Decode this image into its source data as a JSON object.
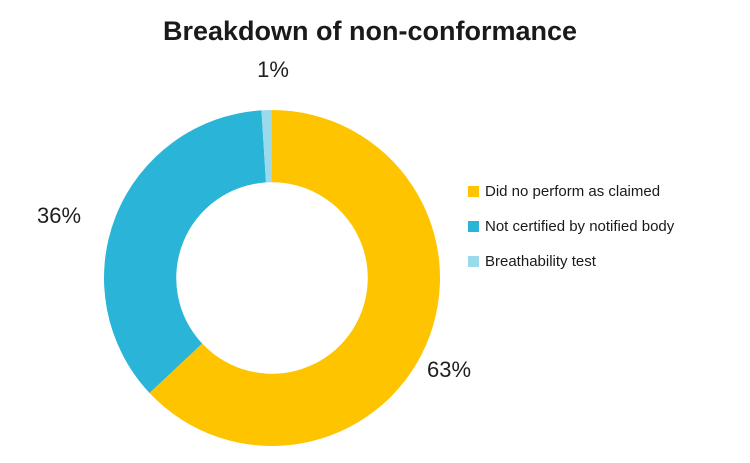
{
  "title": "Breakdown of non-conformance",
  "colors": {
    "slice_yellow": "#FFC400",
    "slice_blue": "#29B4D8",
    "slice_light_blue": "#9BDAEA",
    "text": "#1A1A1A",
    "background": "#FFFFFF"
  },
  "chart_data": {
    "type": "pie",
    "subtype": "donut",
    "title": "Breakdown of non-conformance",
    "categories": [
      "Did no perform as claimed",
      "Not certified by notified body",
      "Breathability test"
    ],
    "values": [
      63,
      36,
      1
    ],
    "unit": "%",
    "start_angle_deg": 0,
    "direction": "clockwise",
    "donut_hole_ratio": 0.57,
    "legend_position": "right",
    "data_labels_position": "outside-end",
    "slices": [
      {
        "label": "Did no perform as claimed",
        "value": 63,
        "data_label": "63%",
        "color": "#FFC400"
      },
      {
        "label": "Not certified by notified body",
        "value": 36,
        "data_label": "36%",
        "color": "#29B4D8"
      },
      {
        "label": "Breathability test",
        "value": 1,
        "data_label": "1%",
        "color": "#9BDAEA"
      }
    ]
  }
}
